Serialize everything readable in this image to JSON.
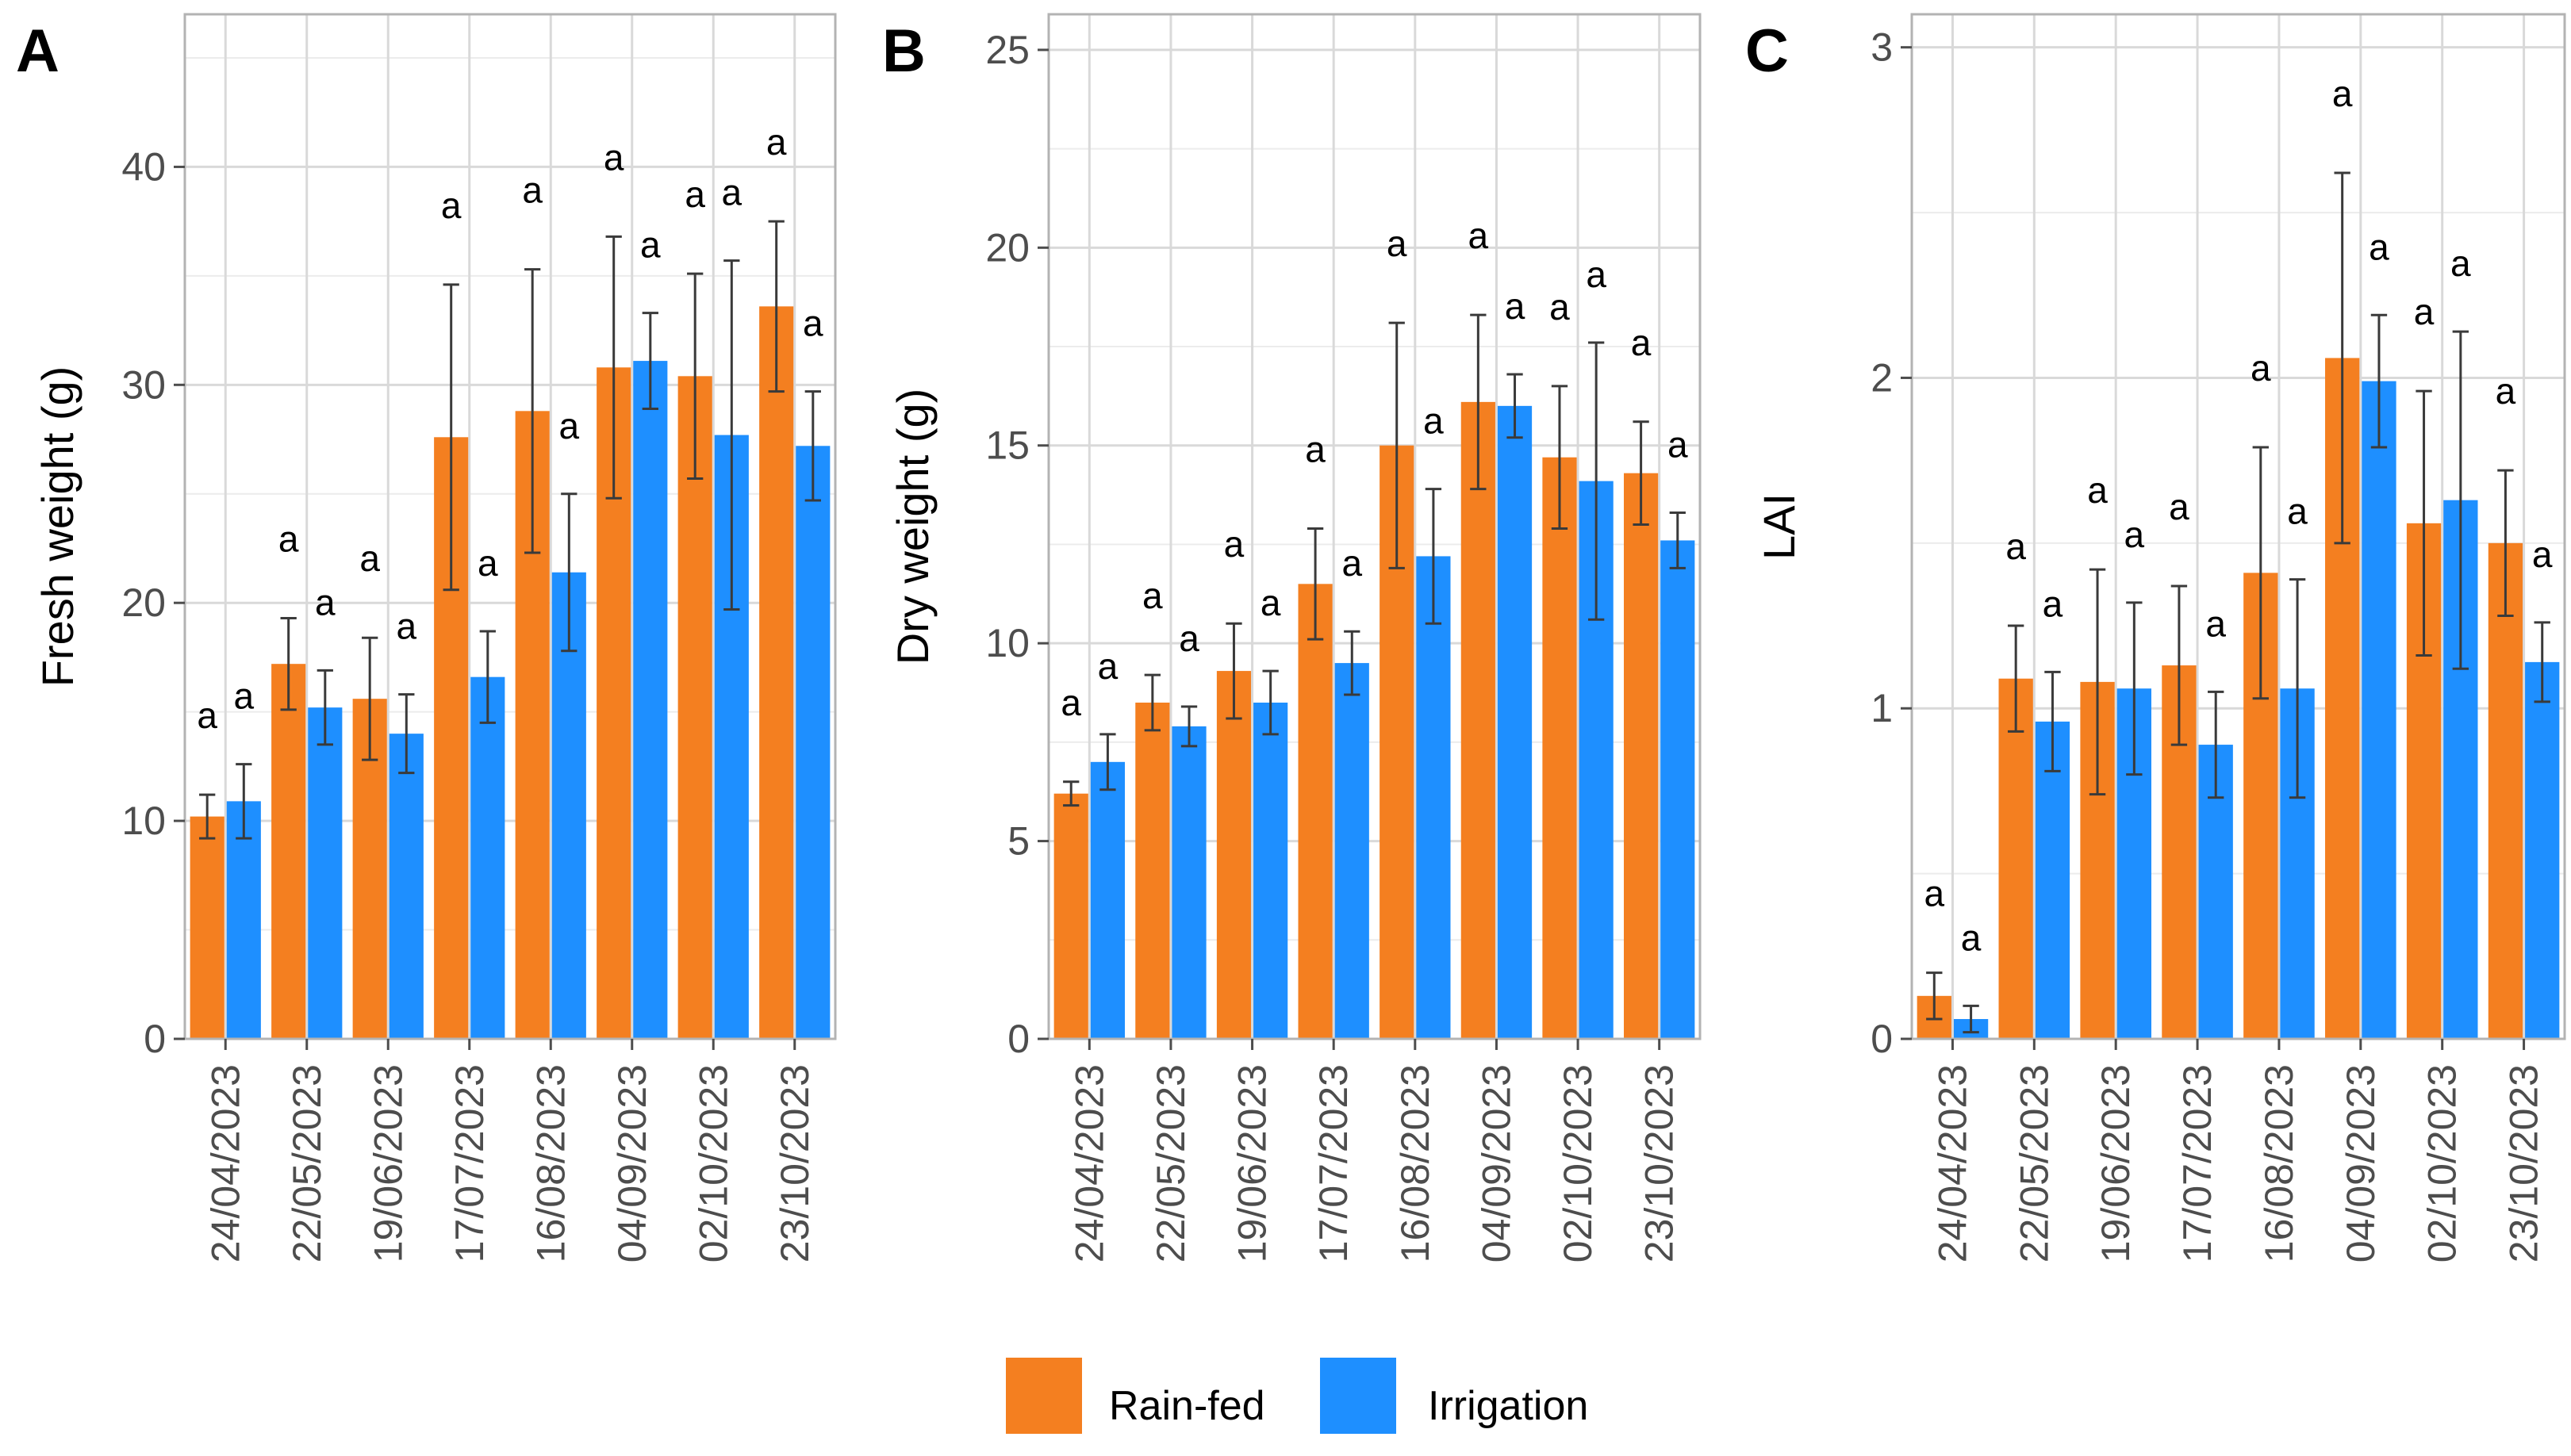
{
  "colors": {
    "rainfed": "#f47f20",
    "irrigation": "#1e8fff"
  },
  "legend": {
    "items": [
      {
        "label": "Rain-fed",
        "color": "#f47f20"
      },
      {
        "label": "Irrigation",
        "color": "#1e8fff"
      }
    ]
  },
  "chart_data": [
    {
      "type": "bar",
      "panel": "A",
      "ylabel": "Fresh weight (g)",
      "ylim": [
        0,
        47
      ],
      "yticks": [
        0,
        10,
        20,
        30,
        40
      ],
      "categories": [
        "24/04/2023",
        "22/05/2023",
        "19/06/2023",
        "17/07/2023",
        "16/08/2023",
        "04/09/2023",
        "02/10/2023",
        "23/10/2023"
      ],
      "series": [
        {
          "name": "Rain-fed",
          "values": [
            10.2,
            17.2,
            15.6,
            27.6,
            28.8,
            30.8,
            30.4,
            33.6
          ],
          "errors": [
            1.0,
            2.1,
            2.8,
            7.0,
            6.5,
            6.0,
            4.7,
            3.9
          ],
          "sig": [
            "a",
            "a",
            "a",
            "a",
            "a",
            "a",
            "a",
            "a"
          ]
        },
        {
          "name": "Irrigation",
          "values": [
            10.9,
            15.2,
            14.0,
            16.6,
            21.4,
            31.1,
            27.7,
            27.2
          ],
          "errors": [
            1.7,
            1.7,
            1.8,
            2.1,
            3.6,
            2.2,
            8.0,
            2.5
          ],
          "sig": [
            "a",
            "a",
            "a",
            "a",
            "a",
            "a",
            "a",
            "a"
          ]
        }
      ]
    },
    {
      "type": "bar",
      "panel": "B",
      "ylabel": "Dry weight (g)",
      "ylim": [
        0,
        25.9
      ],
      "yticks": [
        0,
        5,
        10,
        15,
        20,
        25
      ],
      "categories": [
        "24/04/2023",
        "22/05/2023",
        "19/06/2023",
        "17/07/2023",
        "16/08/2023",
        "04/09/2023",
        "02/10/2023",
        "23/10/2023"
      ],
      "series": [
        {
          "name": "Rain-fed",
          "values": [
            6.2,
            8.5,
            9.3,
            11.5,
            15.0,
            16.1,
            14.7,
            14.3
          ],
          "errors": [
            0.3,
            0.7,
            1.2,
            1.4,
            3.1,
            2.2,
            1.8,
            1.3
          ],
          "sig": [
            "a",
            "a",
            "a",
            "a",
            "a",
            "a",
            "a",
            "a"
          ]
        },
        {
          "name": "Irrigation",
          "values": [
            7.0,
            7.9,
            8.5,
            9.5,
            12.2,
            16.0,
            14.1,
            12.6
          ],
          "errors": [
            0.7,
            0.5,
            0.8,
            0.8,
            1.7,
            0.8,
            3.5,
            0.7
          ],
          "sig": [
            "a",
            "a",
            "a",
            "a",
            "a",
            "a",
            "a",
            "a"
          ]
        }
      ]
    },
    {
      "type": "bar",
      "panel": "C",
      "ylabel": "LAI",
      "ylim": [
        0,
        3.1
      ],
      "yticks": [
        0,
        1,
        2,
        3
      ],
      "categories": [
        "24/04/2023",
        "22/05/2023",
        "19/06/2023",
        "17/07/2023",
        "16/08/2023",
        "04/09/2023",
        "02/10/2023",
        "23/10/2023"
      ],
      "series": [
        {
          "name": "Rain-fed",
          "values": [
            0.13,
            1.09,
            1.08,
            1.13,
            1.41,
            2.06,
            1.56,
            1.5
          ],
          "errors": [
            0.07,
            0.16,
            0.34,
            0.24,
            0.38,
            0.56,
            0.4,
            0.22
          ],
          "sig": [
            "a",
            "a",
            "a",
            "a",
            "a",
            "a",
            "a",
            "a"
          ]
        },
        {
          "name": "Irrigation",
          "values": [
            0.06,
            0.96,
            1.06,
            0.89,
            1.06,
            1.99,
            1.63,
            1.14
          ],
          "errors": [
            0.04,
            0.15,
            0.26,
            0.16,
            0.33,
            0.2,
            0.51,
            0.12
          ],
          "sig": [
            "a",
            "a",
            "a",
            "a",
            "a",
            "a",
            "a",
            "a"
          ]
        }
      ]
    }
  ]
}
